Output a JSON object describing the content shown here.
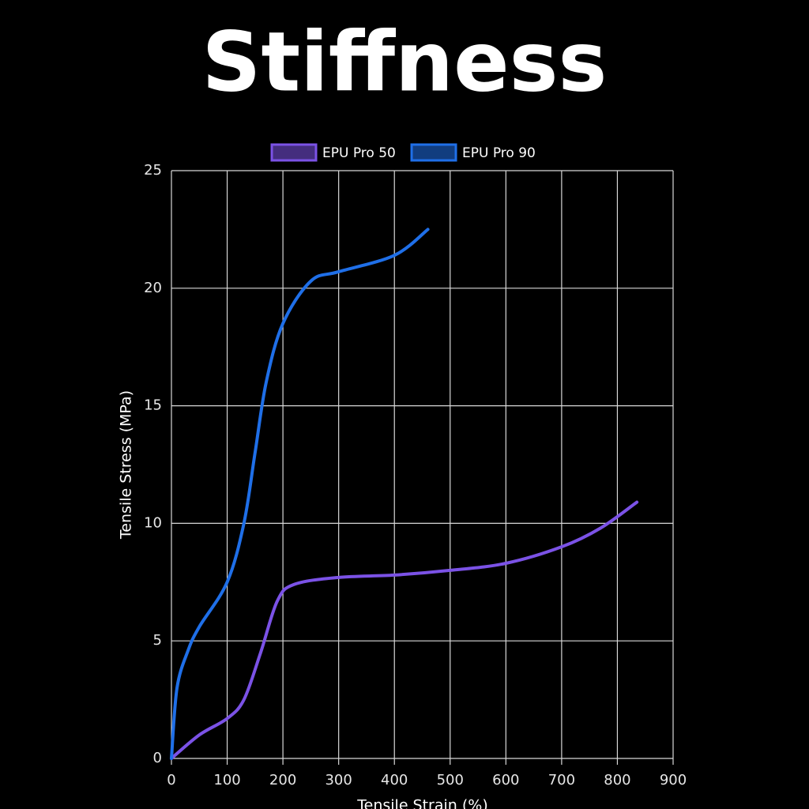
{
  "chart_data": {
    "type": "line",
    "title": "Stiffness",
    "x_label": "Tensile Strain (%)",
    "y_label": "Tensile Stress (MPa)",
    "xlim": [
      0,
      900
    ],
    "xticks": [
      0,
      100,
      200,
      300,
      400,
      500,
      600,
      700,
      800,
      900
    ],
    "ylim": [
      0,
      25
    ],
    "yticks": [
      0,
      5,
      10,
      15,
      20,
      25
    ],
    "grid": true,
    "legend": "top",
    "series": [
      {
        "name": "EPU Pro 50",
        "color": "#7b52e6",
        "x": [
          0,
          50,
          100,
          130,
          160,
          190,
          220,
          300,
          400,
          500,
          600,
          700,
          770,
          835
        ],
        "values": [
          0,
          1.0,
          1.7,
          2.5,
          4.5,
          6.7,
          7.4,
          7.7,
          7.8,
          8.0,
          8.3,
          9.0,
          9.8,
          10.9
        ]
      },
      {
        "name": "EPU Pro 90",
        "color": "#1f6fe8",
        "x": [
          0,
          10,
          30,
          50,
          100,
          130,
          150,
          170,
          200,
          250,
          300,
          400,
          460
        ],
        "values": [
          0,
          3.0,
          4.6,
          5.6,
          7.5,
          10,
          13,
          16,
          18.5,
          20.3,
          20.7,
          21.4,
          22.5
        ]
      }
    ]
  }
}
